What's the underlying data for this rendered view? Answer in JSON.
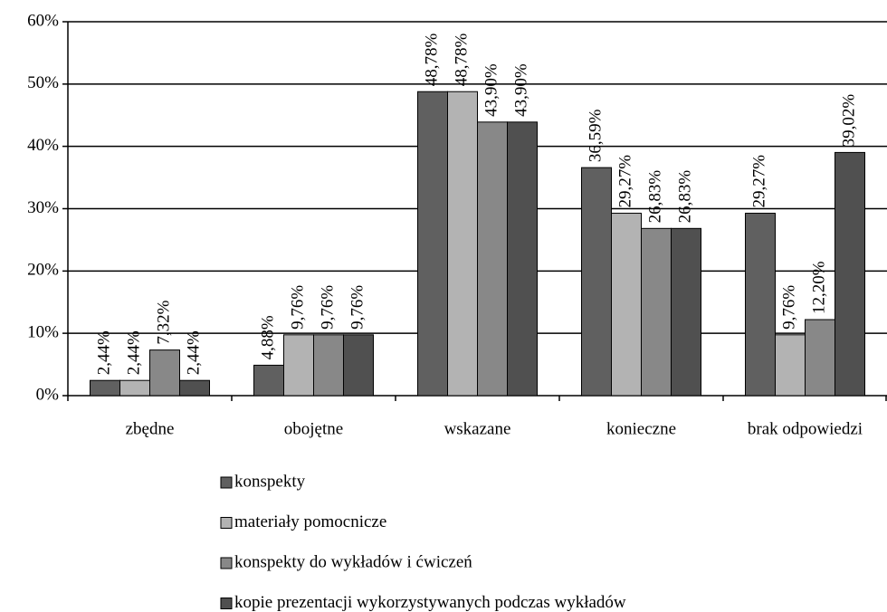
{
  "chart_data": {
    "type": "bar",
    "categories": [
      "zbędne",
      "obojętne",
      "wskazane",
      "konieczne",
      "brak odpowiedzi"
    ],
    "series": [
      {
        "name": "konspekty",
        "color": "#606060",
        "values": [
          2.44,
          4.88,
          48.78,
          36.59,
          29.27
        ],
        "value_labels": [
          "2,44%",
          "4,88%",
          "48,78%",
          "36,59%",
          "29,27%"
        ]
      },
      {
        "name": "materiały pomocnicze",
        "color": "#b3b3b3",
        "values": [
          2.44,
          9.76,
          48.78,
          29.27,
          9.76
        ],
        "value_labels": [
          "2,44%",
          "9,76%",
          "48,78%",
          "29,27%",
          "9,76%"
        ]
      },
      {
        "name": "konspekty do wykładów i ćwiczeń",
        "color": "#888888",
        "values": [
          7.32,
          9.76,
          43.9,
          26.83,
          12.2
        ],
        "value_labels": [
          "7,32%",
          "9,76%",
          "43,90%",
          "26,83%",
          "12,20%"
        ]
      },
      {
        "name": "kopie prezentacji wykorzystywanych podczas wykładów",
        "color": "#505050",
        "values": [
          2.44,
          9.76,
          43.9,
          26.83,
          39.02
        ],
        "value_labels": [
          "2,44%",
          "9,76%",
          "43,90%",
          "26,83%",
          "39,02%"
        ]
      }
    ],
    "ylim": [
      0,
      60
    ],
    "yticks": [
      {
        "value": 0,
        "label": "0%"
      },
      {
        "value": 10,
        "label": "10%"
      },
      {
        "value": 20,
        "label": "20%"
      },
      {
        "value": 30,
        "label": "30%"
      },
      {
        "value": 40,
        "label": "40%"
      },
      {
        "value": 50,
        "label": "50%"
      },
      {
        "value": 60,
        "label": "60%"
      }
    ],
    "grid": true
  }
}
